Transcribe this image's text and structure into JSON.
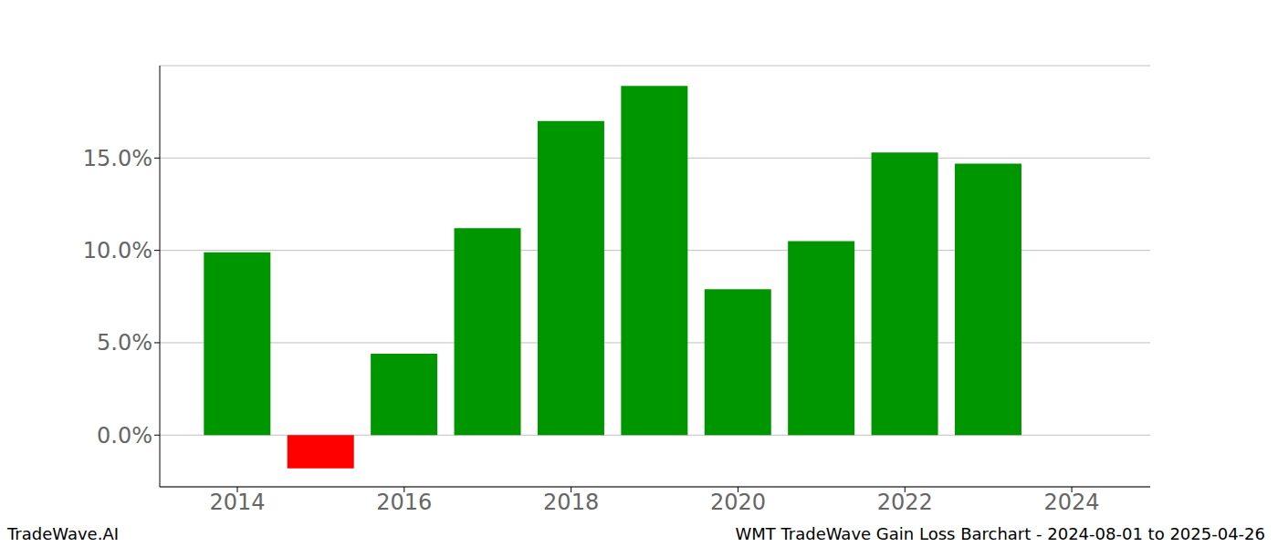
{
  "chart_data": {
    "type": "bar",
    "x": [
      2014,
      2015,
      2016,
      2017,
      2018,
      2019,
      2020,
      2021,
      2022,
      2023
    ],
    "values": [
      9.9,
      -1.8,
      4.4,
      11.2,
      17.0,
      18.9,
      7.9,
      10.5,
      15.3,
      14.7
    ],
    "colors": [
      "#009600",
      "#ff0000",
      "#009600",
      "#009600",
      "#009600",
      "#009600",
      "#009600",
      "#009600",
      "#009600",
      "#009600"
    ],
    "xlim": [
      2013.07,
      2024.94
    ],
    "xticks": [
      2014,
      2016,
      2018,
      2020,
      2022,
      2024
    ],
    "ylim": [
      -2.8,
      20.0
    ],
    "yticks": [
      {
        "value": 0,
        "label": "0.0%"
      },
      {
        "value": 5,
        "label": "5.0%"
      },
      {
        "value": 10,
        "label": "10.0%"
      },
      {
        "value": 15,
        "label": "15.0%"
      }
    ],
    "grid": true,
    "annotations": [
      "TradeWave.AI",
      "WMT TradeWave Gain Loss Barchart - 2024-08-01 to 2025-04-26"
    ]
  }
}
